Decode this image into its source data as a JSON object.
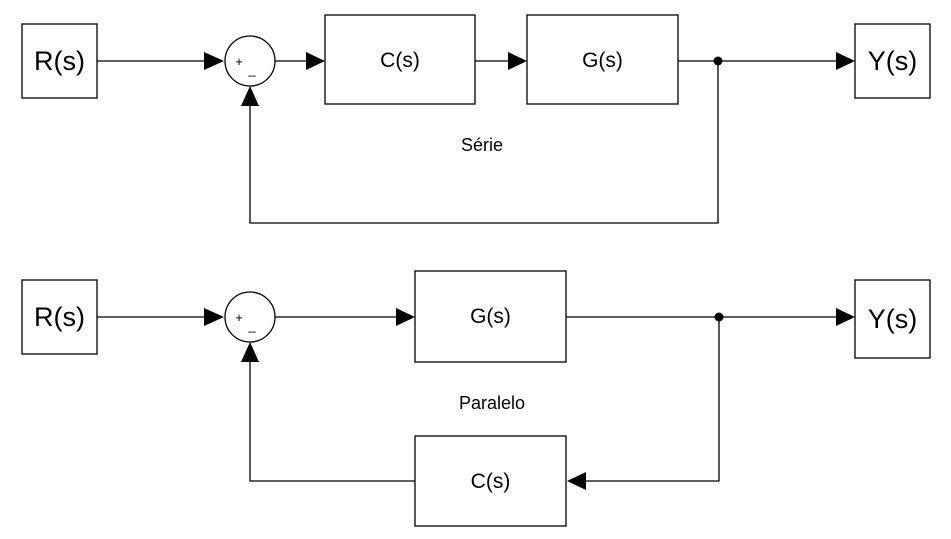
{
  "series_diagram": {
    "caption": "Série",
    "input_label": "R(s)",
    "output_label": "Y(s)",
    "sum_plus": "+",
    "sum_minus": "_",
    "controller_label": "C(s)",
    "plant_label": "G(s)"
  },
  "parallel_diagram": {
    "caption": "Paralelo",
    "input_label": "R(s)",
    "output_label": "Y(s)",
    "sum_plus": "+",
    "sum_minus": "_",
    "plant_label": "G(s)",
    "feedback_label": "C(s)"
  }
}
